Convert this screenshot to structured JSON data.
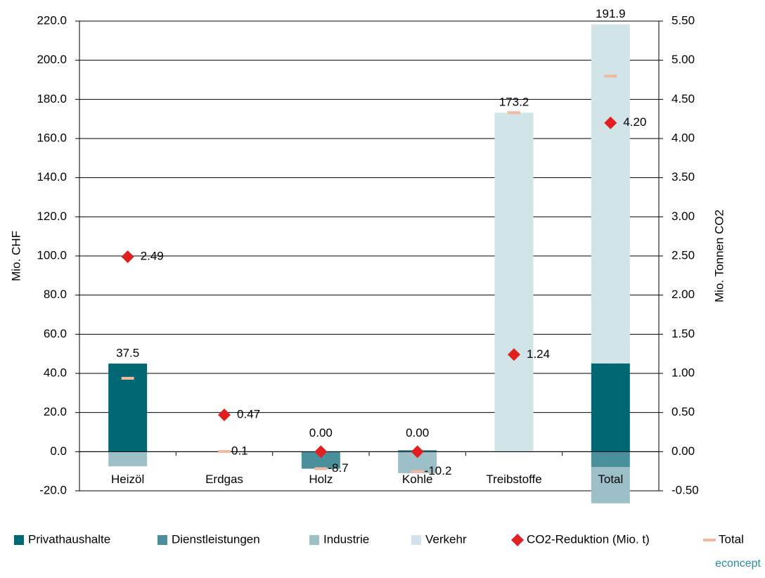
{
  "chart_data": {
    "type": "bar",
    "categories": [
      "Heizöl",
      "Erdgas",
      "Holz",
      "Kohle",
      "Treibstoffe",
      "Total"
    ],
    "stacked": true,
    "series": [
      {
        "name": "Privathaushalte",
        "color": "#006872",
        "values": [
          45.0,
          0.1,
          0,
          0,
          0,
          45.1
        ]
      },
      {
        "name": "Dienstleistungen",
        "color": "#4a8f9c",
        "values": [
          0,
          0,
          -8.7,
          0.8,
          0,
          -7.9
        ]
      },
      {
        "name": "Industrie",
        "color": "#9dc0c8",
        "values": [
          -7.5,
          0,
          0,
          -11.0,
          0,
          -18.5
        ]
      },
      {
        "name": "Verkehr",
        "color": "#d1e5e8",
        "values": [
          0,
          0,
          0,
          0,
          173.2,
          173.2
        ]
      },
      {
        "name": "CO2-Reduktion (Mio. t)",
        "color": "#e02020",
        "axis": "y2",
        "marker": "diamond",
        "values": [
          2.49,
          0.47,
          0,
          0,
          1.24,
          4.2
        ],
        "value_labels": [
          "2.49",
          "0.47",
          "0.00",
          "0.00",
          "1.24",
          "4.20"
        ]
      },
      {
        "name": "Total",
        "color": "#f4b8a0",
        "marker": "dash",
        "values": [
          37.5,
          0.1,
          -8.7,
          -10.2,
          173.2,
          191.9
        ]
      }
    ],
    "ylabel": "Mio. CHF",
    "y2label": "Mio. Tonnen CO2",
    "ylim": [
      -20,
      220
    ],
    "yticks": [
      {
        "value": -20,
        "label": "-20.0"
      },
      {
        "value": 0,
        "label": "0.0"
      },
      {
        "value": 20,
        "label": "20.0"
      },
      {
        "value": 40,
        "label": "40.0"
      },
      {
        "value": 60,
        "label": "60.0"
      },
      {
        "value": 80,
        "label": "80.0"
      },
      {
        "value": 100,
        "label": "100.0"
      },
      {
        "value": 120,
        "label": "120.0"
      },
      {
        "value": 140,
        "label": "140.0"
      },
      {
        "value": 160,
        "label": "160.0"
      },
      {
        "value": 180,
        "label": "180.0"
      },
      {
        "value": 200,
        "label": "200.0"
      },
      {
        "value": 220,
        "label": "220.0"
      }
    ],
    "y2lim": [
      -0.5,
      5.5
    ],
    "y2ticks": [
      {
        "value": -0.5,
        "label": "-0.50"
      },
      {
        "value": 0,
        "label": "0.00"
      },
      {
        "value": 0.5,
        "label": "0.50"
      },
      {
        "value": 1,
        "label": "1.00"
      },
      {
        "value": 1.5,
        "label": "1.50"
      },
      {
        "value": 2,
        "label": "2.00"
      },
      {
        "value": 2.5,
        "label": "2.50"
      },
      {
        "value": 3,
        "label": "3.00"
      },
      {
        "value": 3.5,
        "label": "3.50"
      },
      {
        "value": 4,
        "label": "4.00"
      },
      {
        "value": 4.5,
        "label": "4.50"
      },
      {
        "value": 5,
        "label": "5.00"
      },
      {
        "value": 5.5,
        "label": "5.50"
      }
    ],
    "grid": true,
    "legend": "bottom",
    "source": "econcept"
  }
}
